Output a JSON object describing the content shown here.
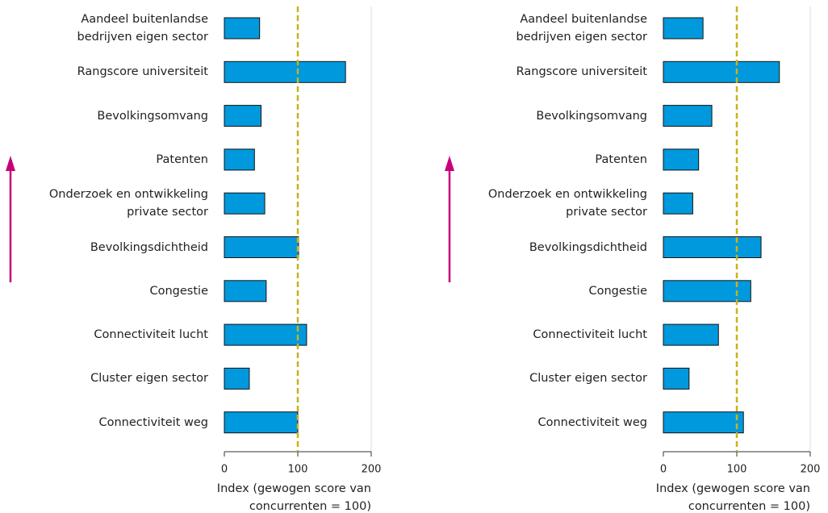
{
  "chart_data": [
    {
      "type": "bar",
      "orientation": "horizontal",
      "categories": [
        "Aandeel buitenlandse\nbedrijven eigen sector",
        "Rangscore universiteit",
        "Bevolkingsomvang",
        "Patenten",
        "Onderzoek en ontwikkeling\nprivate sector",
        "Bevolkingsdichtheid",
        "Congestie",
        "Connectiviteit lucht",
        "Cluster eigen sector",
        "Connectiviteit weg"
      ],
      "values": [
        48,
        165,
        50,
        41,
        55,
        101,
        57,
        112,
        34,
        100
      ],
      "color": "#0099dd",
      "reference_line": 100,
      "reference_color": "#c9b21a",
      "xlim": [
        0,
        200
      ],
      "xticks": [
        0,
        100,
        200
      ],
      "x_label": "Index (gewogen score van\nconcurrenten = 100)"
    },
    {
      "type": "bar",
      "orientation": "horizontal",
      "categories": [
        "Aandeel buitenlandse\nbedrijven eigen sector",
        "Rangscore universiteit",
        "Bevolkingsomvang",
        "Patenten",
        "Onderzoek en ontwikkeling\nprivate sector",
        "Bevolkingsdichtheid",
        "Congestie",
        "Connectiviteit lucht",
        "Cluster eigen sector",
        "Connectiviteit weg"
      ],
      "values": [
        54,
        158,
        66,
        48,
        40,
        133,
        119,
        75,
        35,
        109
      ],
      "color": "#0099dd",
      "reference_line": 100,
      "reference_color": "#c9b21a",
      "xlim": [
        0,
        200
      ],
      "xticks": [
        0,
        100,
        200
      ],
      "x_label": "Index (gewogen score van\nconcurrenten = 100)"
    }
  ]
}
